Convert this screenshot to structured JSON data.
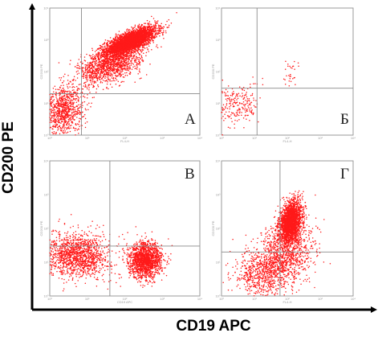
{
  "chart_data": {
    "type": "scatter",
    "xlabel": "CD19 APC",
    "ylabel": "CD200 PE",
    "colors": {
      "dots": "#ff1a1a",
      "frame": "#9a9a9a",
      "quadrant": "#8a8a8a",
      "axis": "#000000"
    },
    "axis_scale": "log",
    "xlim": [
      1,
      10000
    ],
    "ylim": [
      1,
      10000
    ],
    "grid": false,
    "panels": [
      {
        "label": "А",
        "mini_xlabel": "FL4-H",
        "mini_ylabel": "CD200 PE",
        "quadrant": {
          "x": 7,
          "y": 20
        },
        "populations": [
          {
            "n": 3600,
            "cx": 2.15,
            "cy": 2.95,
            "sx": 0.34,
            "sy": 0.22,
            "rho": 0.72
          },
          {
            "n": 1300,
            "cx": 1.6,
            "cy": 2.2,
            "sx": 0.42,
            "sy": 0.3,
            "rho": 0.5
          },
          {
            "n": 900,
            "cx": 0.35,
            "cy": 0.8,
            "sx": 0.28,
            "sy": 0.38,
            "rho": 0.1
          }
        ]
      },
      {
        "label": "Б",
        "mini_xlabel": "FL4-H",
        "mini_ylabel": "CD200 PE",
        "quadrant": {
          "x": 12,
          "y": 30
        },
        "populations": [
          {
            "n": 230,
            "cx": 0.5,
            "cy": 0.95,
            "sx": 0.32,
            "sy": 0.34,
            "rho": 0.15
          },
          {
            "n": 30,
            "cx": 2.1,
            "cy": 1.95,
            "sx": 0.15,
            "sy": 0.25,
            "rho": 0.2
          }
        ]
      },
      {
        "label": "В",
        "mini_xlabel": "CD19 APC",
        "mini_ylabel": "CD200 PE",
        "quadrant": {
          "x": 40,
          "y": 30
        },
        "populations": [
          {
            "n": 1400,
            "cx": 0.75,
            "cy": 1.2,
            "sx": 0.42,
            "sy": 0.32,
            "rho": 0.0
          },
          {
            "n": 1600,
            "cx": 2.55,
            "cy": 1.05,
            "sx": 0.22,
            "sy": 0.26,
            "rho": 0.0
          }
        ]
      },
      {
        "label": "Г",
        "mini_xlabel": "FL4-H",
        "mini_ylabel": "CD200 PE",
        "quadrant": {
          "x": 60,
          "y": 20
        },
        "populations": [
          {
            "n": 2300,
            "cx": 2.1,
            "cy": 2.2,
            "sx": 0.16,
            "sy": 0.3,
            "rho": 0.3
          },
          {
            "n": 1200,
            "cx": 1.9,
            "cy": 1.2,
            "sx": 0.45,
            "sy": 0.5,
            "rho": 0.3
          },
          {
            "n": 500,
            "cx": 1.2,
            "cy": 0.6,
            "sx": 0.4,
            "sy": 0.35,
            "rho": 0.0
          }
        ]
      }
    ]
  }
}
